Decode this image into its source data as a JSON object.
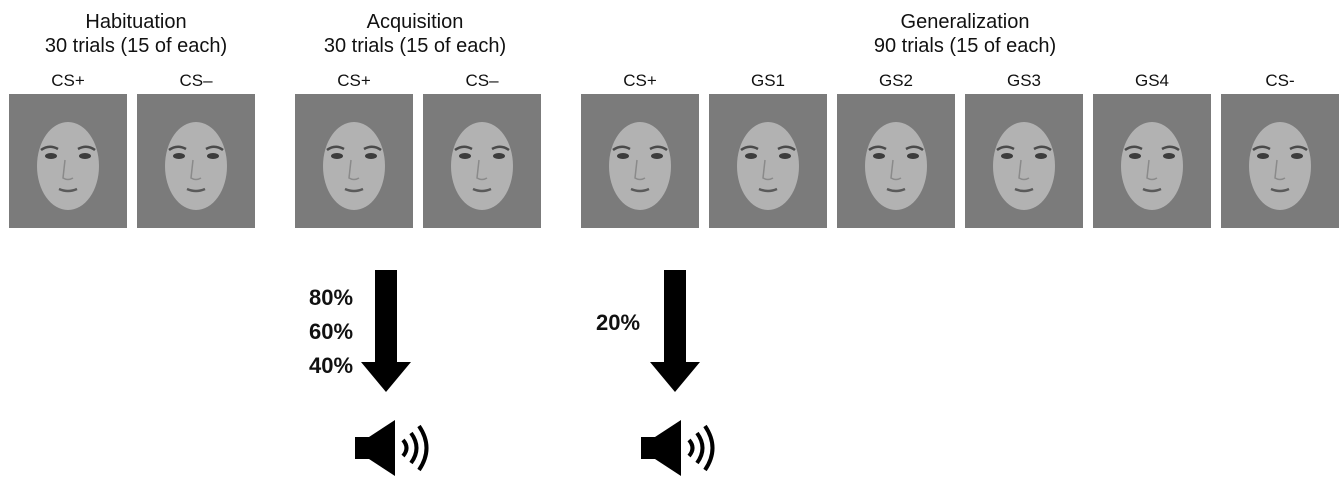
{
  "phases": {
    "habituation": {
      "title": "Habituation",
      "subtitle": "30 trials (15 of each)",
      "stimuli": [
        "CS+",
        "CS–"
      ]
    },
    "acquisition": {
      "title": "Acquisition",
      "subtitle": "30 trials (15 of each)",
      "stimuli": [
        "CS+",
        "CS–"
      ],
      "reinforcement": [
        "80%",
        "60%",
        "40%"
      ]
    },
    "generalization": {
      "title": "Generalization",
      "subtitle": "90 trials (15 of each)",
      "stimuli": [
        "CS+",
        "GS1",
        "GS2",
        "GS3",
        "GS4",
        "CS-"
      ],
      "reinforcement": [
        "20%"
      ]
    }
  },
  "icons": {
    "arrow": "down-arrow-icon",
    "sound": "speaker-sound-icon"
  },
  "colors": {
    "stimulus_background": "#7b7b7b",
    "face": "#b5b5b5"
  }
}
